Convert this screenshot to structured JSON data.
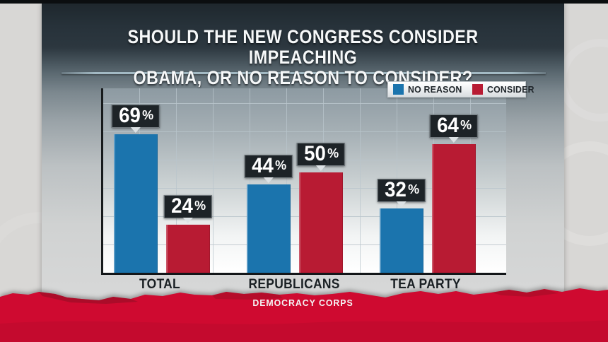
{
  "title": {
    "line1": "SHOULD THE NEW CONGRESS CONSIDER IMPEACHING",
    "line2": "OBAMA, OR NO REASON TO CONSIDER?"
  },
  "meta": {
    "source_label": "DEMOCRACY CORPS"
  },
  "chart_data": {
    "type": "bar",
    "title": "Should the new Congress consider impeaching Obama, or no reason to consider?",
    "categories": [
      "TOTAL",
      "REPUBLICANS",
      "TEA PARTY"
    ],
    "series": [
      {
        "name": "NO REASON",
        "color": "#1b74ad",
        "values": [
          69,
          44,
          32
        ]
      },
      {
        "name": "CONSIDER",
        "color": "#b81b33",
        "values": [
          24,
          50,
          64
        ]
      }
    ],
    "value_suffix": "%",
    "ylim": [
      0,
      92
    ],
    "grid": true,
    "legend_position": "top-right",
    "xlabel": "",
    "ylabel": "",
    "source": "DEMOCRACY CORPS"
  },
  "colors": {
    "banner_red": "#cf0a30",
    "banner_red_dark": "#8e0e24",
    "header_slate": "#2c373f",
    "label_box": "#1d2327",
    "divider": "#a3bac4",
    "axis": "#171b1d"
  }
}
